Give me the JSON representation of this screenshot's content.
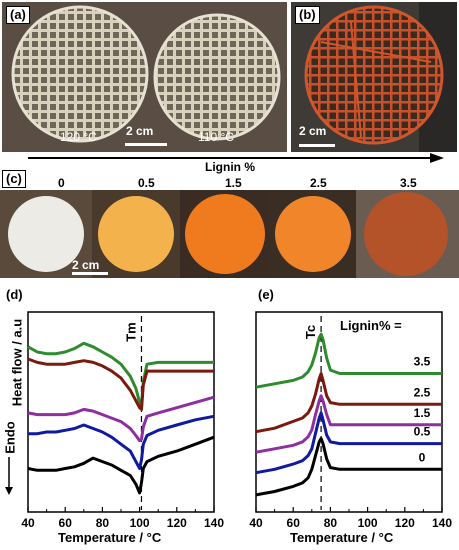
{
  "figure": {
    "panel_a": {
      "label": "(a)",
      "temp_left": "120 °C",
      "temp_right": "110 °C",
      "scale": "2 cm"
    },
    "panel_b": {
      "label": "(b)",
      "scale": "2 cm"
    },
    "lignin_arrow": {
      "label": "Lignin %"
    },
    "panel_c": {
      "label": "(c)",
      "scale": "2 cm",
      "samples": [
        {
          "value": "0",
          "color": "#ecebe6",
          "bg": "#5a4a3c"
        },
        {
          "value": "0.5",
          "color": "#f3b24c",
          "bg": "#4a3a2c"
        },
        {
          "value": "1.5",
          "color": "#f07a1e",
          "bg": "#3a2c22"
        },
        {
          "value": "2.5",
          "color": "#f0852a",
          "bg": "#3a2e24"
        },
        {
          "value": "3.5",
          "color": "#b4522a",
          "bg": "#6a5c50"
        }
      ]
    }
  },
  "chart_data": [
    {
      "type": "line",
      "panel_label": "(d)",
      "xlabel": "Temperature  /  °C",
      "ylabel": "Heat flow  / a.u",
      "y_side_label": "Endo",
      "annotation": "Tm",
      "xlim": [
        40,
        140
      ],
      "xticks": [
        "40",
        "60",
        "80",
        "100",
        "120",
        "140"
      ],
      "series": [
        {
          "color": "#2e8b2e",
          "x": [
            40,
            45,
            50,
            55,
            60,
            65,
            70,
            75,
            80,
            85,
            90,
            95,
            98,
            100,
            101,
            102,
            104,
            110,
            120,
            130,
            140
          ],
          "y": [
            0.8,
            0.77,
            0.76,
            0.76,
            0.77,
            0.79,
            0.82,
            0.8,
            0.77,
            0.74,
            0.7,
            0.63,
            0.56,
            0.48,
            0.46,
            0.6,
            0.7,
            0.71,
            0.71,
            0.71,
            0.71
          ]
        },
        {
          "color": "#7a1a0e",
          "x": [
            40,
            45,
            50,
            55,
            60,
            65,
            70,
            75,
            80,
            85,
            90,
            95,
            98,
            100,
            101,
            102,
            104,
            110,
            120,
            130,
            140
          ],
          "y": [
            0.73,
            0.71,
            0.7,
            0.7,
            0.7,
            0.71,
            0.72,
            0.71,
            0.69,
            0.66,
            0.62,
            0.55,
            0.49,
            0.45,
            0.44,
            0.58,
            0.66,
            0.66,
            0.66,
            0.66,
            0.66
          ]
        },
        {
          "color": "#8e2ea0",
          "x": [
            40,
            45,
            50,
            55,
            60,
            65,
            70,
            75,
            80,
            85,
            90,
            95,
            98,
            100,
            101,
            102,
            104,
            110,
            120,
            130,
            140
          ],
          "y": [
            0.42,
            0.41,
            0.41,
            0.41,
            0.41,
            0.42,
            0.44,
            0.43,
            0.41,
            0.39,
            0.37,
            0.33,
            0.29,
            0.26,
            0.27,
            0.34,
            0.4,
            0.42,
            0.45,
            0.48,
            0.51
          ]
        },
        {
          "color": "#101aa0",
          "x": [
            40,
            45,
            50,
            55,
            60,
            65,
            70,
            75,
            80,
            85,
            90,
            95,
            98,
            100,
            101,
            102,
            104,
            110,
            120,
            130,
            140
          ],
          "y": [
            0.3,
            0.3,
            0.31,
            0.31,
            0.32,
            0.33,
            0.35,
            0.33,
            0.31,
            0.28,
            0.24,
            0.2,
            0.14,
            0.1,
            0.15,
            0.24,
            0.29,
            0.32,
            0.35,
            0.38,
            0.4
          ]
        },
        {
          "color": "#000000",
          "x": [
            40,
            45,
            50,
            55,
            60,
            65,
            70,
            75,
            80,
            85,
            90,
            95,
            98,
            100,
            101,
            102,
            104,
            110,
            120,
            130,
            140
          ],
          "y": [
            0.1,
            0.09,
            0.09,
            0.09,
            0.1,
            0.11,
            0.13,
            0.16,
            0.14,
            0.12,
            0.09,
            0.06,
            0.01,
            -0.04,
            0.02,
            0.1,
            0.14,
            0.17,
            0.2,
            0.24,
            0.28
          ]
        }
      ]
    },
    {
      "type": "line",
      "panel_label": "(e)",
      "xlabel": "Temperature  /  °C",
      "annotation": "Tc",
      "legend_title": "Lignin% =",
      "xlim": [
        40,
        140
      ],
      "xticks": [
        "40",
        "60",
        "80",
        "100",
        "120",
        "140"
      ],
      "series": [
        {
          "name": "3.5",
          "color": "#2e8b2e",
          "x": [
            40,
            50,
            60,
            65,
            68,
            70,
            72,
            74,
            75,
            76,
            78,
            80,
            85,
            90,
            100,
            120,
            140
          ],
          "y": [
            0.68,
            0.7,
            0.72,
            0.74,
            0.77,
            0.81,
            0.88,
            0.97,
            0.99,
            0.96,
            0.85,
            0.78,
            0.76,
            0.76,
            0.76,
            0.76,
            0.76
          ]
        },
        {
          "name": "2.5",
          "color": "#7a1a0e",
          "x": [
            40,
            50,
            60,
            65,
            68,
            70,
            72,
            74,
            75,
            76,
            78,
            80,
            85,
            90,
            100,
            120,
            140
          ],
          "y": [
            0.42,
            0.44,
            0.48,
            0.5,
            0.53,
            0.57,
            0.64,
            0.73,
            0.76,
            0.72,
            0.63,
            0.59,
            0.58,
            0.58,
            0.58,
            0.58,
            0.58
          ]
        },
        {
          "name": "1.5",
          "color": "#8e2ea0",
          "x": [
            40,
            50,
            60,
            65,
            68,
            70,
            72,
            74,
            75,
            76,
            78,
            80,
            85,
            90,
            100,
            120,
            140
          ],
          "y": [
            0.3,
            0.32,
            0.34,
            0.36,
            0.39,
            0.43,
            0.52,
            0.6,
            0.63,
            0.6,
            0.52,
            0.46,
            0.46,
            0.46,
            0.46,
            0.46,
            0.46
          ]
        },
        {
          "name": "0.5",
          "color": "#101aa0",
          "x": [
            40,
            50,
            60,
            65,
            68,
            70,
            72,
            74,
            75,
            76,
            78,
            80,
            85,
            90,
            100,
            120,
            140
          ],
          "y": [
            0.18,
            0.2,
            0.23,
            0.25,
            0.28,
            0.32,
            0.41,
            0.5,
            0.53,
            0.49,
            0.4,
            0.36,
            0.35,
            0.35,
            0.35,
            0.35,
            0.35
          ]
        },
        {
          "name": "0",
          "color": "#000000",
          "x": [
            40,
            50,
            60,
            65,
            68,
            70,
            72,
            74,
            75,
            76,
            78,
            80,
            85,
            90,
            100,
            120,
            140
          ],
          "y": [
            0.05,
            0.07,
            0.1,
            0.12,
            0.15,
            0.2,
            0.28,
            0.36,
            0.38,
            0.35,
            0.26,
            0.21,
            0.2,
            0.2,
            0.2,
            0.2,
            0.2
          ]
        }
      ]
    }
  ]
}
